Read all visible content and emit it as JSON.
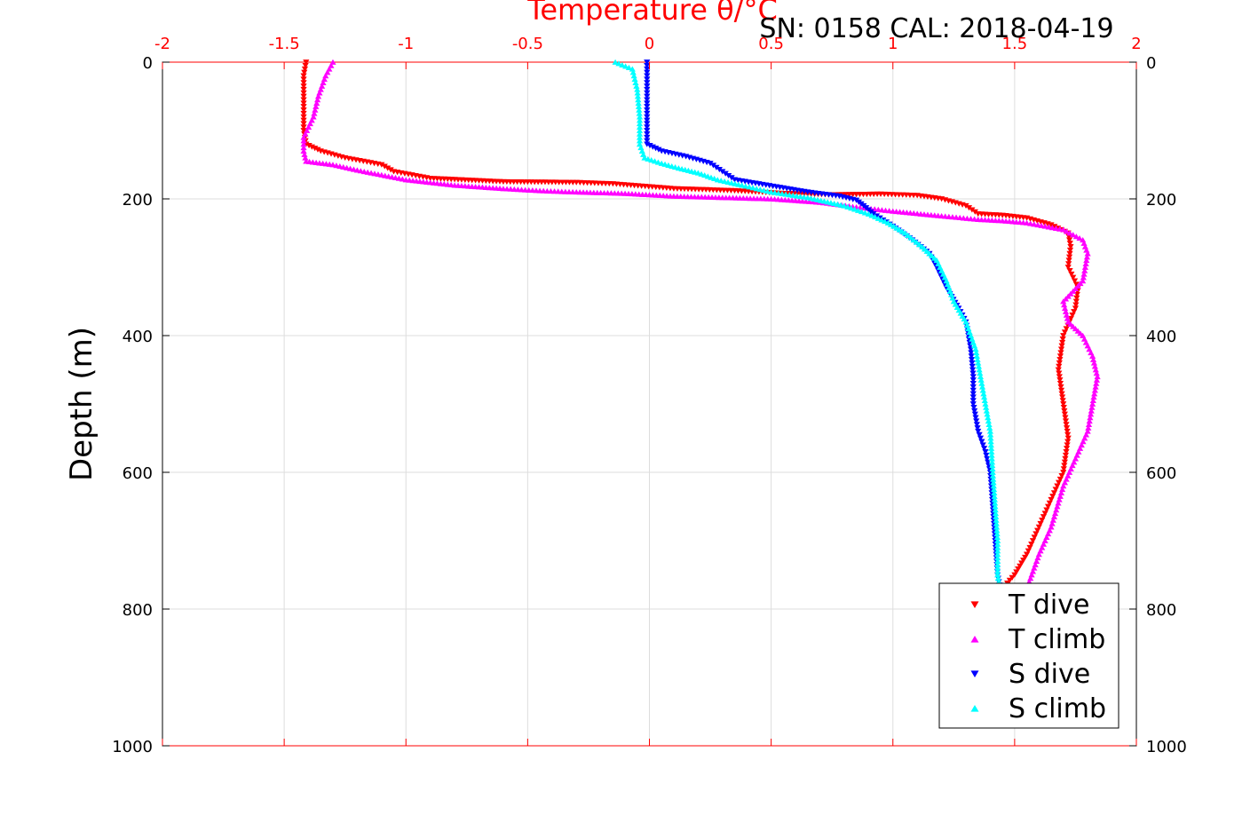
{
  "chart_data": {
    "type": "scatter",
    "title": "SN: 0158  CAL: 2018-04-19",
    "xlabel": "Temperature θ/°C",
    "ylabel": "Depth (m)",
    "xlim": [
      -2,
      2
    ],
    "ylim": [
      0,
      1000
    ],
    "y_reversed": true,
    "grid": true,
    "legend_position": "bottom-right",
    "x_ticks": [
      "-2",
      "-1.5",
      "-1",
      "-0.5",
      "0",
      "0.5",
      "1",
      "1.5",
      "2"
    ],
    "y_ticks": [
      "0",
      "200",
      "400",
      "600",
      "800",
      "1000"
    ],
    "colors": {
      "x_axis": "#ff0000",
      "y_axis": "#000000",
      "grid": "#dddddd"
    },
    "series": [
      {
        "name": "T dive",
        "marker": "triangle-down",
        "color": "#ff0000",
        "points": [
          [
            -1.41,
            0
          ],
          [
            -1.42,
            20
          ],
          [
            -1.42,
            50
          ],
          [
            -1.42,
            80
          ],
          [
            -1.42,
            100
          ],
          [
            -1.41,
            120
          ],
          [
            -1.35,
            130
          ],
          [
            -1.25,
            140
          ],
          [
            -1.1,
            150
          ],
          [
            -1.05,
            160
          ],
          [
            -0.9,
            170
          ],
          [
            -0.6,
            175
          ],
          [
            -0.3,
            176
          ],
          [
            -0.15,
            178
          ],
          [
            0.1,
            185
          ],
          [
            0.35,
            188
          ],
          [
            0.55,
            192
          ],
          [
            0.75,
            194
          ],
          [
            0.95,
            193
          ],
          [
            1.1,
            195
          ],
          [
            1.2,
            200
          ],
          [
            1.3,
            210
          ],
          [
            1.35,
            222
          ],
          [
            1.45,
            224
          ],
          [
            1.55,
            228
          ],
          [
            1.65,
            238
          ],
          [
            1.72,
            250
          ],
          [
            1.73,
            270
          ],
          [
            1.72,
            300
          ],
          [
            1.76,
            330
          ],
          [
            1.75,
            360
          ],
          [
            1.7,
            400
          ],
          [
            1.68,
            450
          ],
          [
            1.7,
            500
          ],
          [
            1.72,
            550
          ],
          [
            1.7,
            600
          ],
          [
            1.65,
            640
          ],
          [
            1.6,
            680
          ],
          [
            1.55,
            720
          ],
          [
            1.5,
            750
          ],
          [
            1.45,
            770
          ]
        ]
      },
      {
        "name": "T climb",
        "marker": "triangle-up",
        "color": "#ff00ff",
        "points": [
          [
            -1.3,
            0
          ],
          [
            -1.33,
            20
          ],
          [
            -1.36,
            50
          ],
          [
            -1.38,
            80
          ],
          [
            -1.42,
            110
          ],
          [
            -1.42,
            130
          ],
          [
            -1.41,
            145
          ],
          [
            -1.3,
            150
          ],
          [
            -1.2,
            158
          ],
          [
            -1.1,
            165
          ],
          [
            -1.0,
            172
          ],
          [
            -0.8,
            180
          ],
          [
            -0.6,
            185
          ],
          [
            -0.45,
            188
          ],
          [
            -0.3,
            190
          ],
          [
            -0.1,
            192
          ],
          [
            0.1,
            196
          ],
          [
            0.3,
            198
          ],
          [
            0.5,
            200
          ],
          [
            0.7,
            205
          ],
          [
            0.85,
            212
          ],
          [
            1.0,
            218
          ],
          [
            1.2,
            225
          ],
          [
            1.35,
            230
          ],
          [
            1.45,
            232
          ],
          [
            1.55,
            235
          ],
          [
            1.7,
            245
          ],
          [
            1.78,
            260
          ],
          [
            1.8,
            280
          ],
          [
            1.78,
            320
          ],
          [
            1.7,
            350
          ],
          [
            1.72,
            380
          ],
          [
            1.78,
            400
          ],
          [
            1.82,
            430
          ],
          [
            1.84,
            460
          ],
          [
            1.82,
            500
          ],
          [
            1.8,
            540
          ],
          [
            1.75,
            580
          ],
          [
            1.7,
            620
          ],
          [
            1.65,
            680
          ],
          [
            1.6,
            720
          ],
          [
            1.56,
            760
          ]
        ]
      },
      {
        "name": "S dive",
        "marker": "triangle-down",
        "color": "#0000ff",
        "points": [
          [
            -0.01,
            0
          ],
          [
            -0.01,
            20
          ],
          [
            -0.01,
            60
          ],
          [
            -0.01,
            100
          ],
          [
            -0.01,
            120
          ],
          [
            0.05,
            130
          ],
          [
            0.15,
            138
          ],
          [
            0.25,
            148
          ],
          [
            0.3,
            160
          ],
          [
            0.35,
            172
          ],
          [
            0.45,
            178
          ],
          [
            0.55,
            184
          ],
          [
            0.65,
            190
          ],
          [
            0.78,
            196
          ],
          [
            0.85,
            202
          ],
          [
            0.88,
            210
          ],
          [
            0.92,
            222
          ],
          [
            1.0,
            240
          ],
          [
            1.08,
            260
          ],
          [
            1.15,
            280
          ],
          [
            1.18,
            300
          ],
          [
            1.22,
            330
          ],
          [
            1.27,
            360
          ],
          [
            1.3,
            380
          ],
          [
            1.32,
            420
          ],
          [
            1.33,
            460
          ],
          [
            1.33,
            500
          ],
          [
            1.35,
            540
          ],
          [
            1.38,
            570
          ],
          [
            1.4,
            600
          ],
          [
            1.41,
            650
          ],
          [
            1.42,
            700
          ],
          [
            1.43,
            750
          ],
          [
            1.44,
            770
          ]
        ]
      },
      {
        "name": "S climb",
        "marker": "triangle-up",
        "color": "#00ffff",
        "points": [
          [
            -0.14,
            0
          ],
          [
            -0.07,
            10
          ],
          [
            -0.05,
            40
          ],
          [
            -0.04,
            80
          ],
          [
            -0.04,
            120
          ],
          [
            -0.02,
            140
          ],
          [
            0.05,
            148
          ],
          [
            0.12,
            155
          ],
          [
            0.2,
            162
          ],
          [
            0.28,
            172
          ],
          [
            0.38,
            180
          ],
          [
            0.5,
            190
          ],
          [
            0.65,
            198
          ],
          [
            0.8,
            210
          ],
          [
            0.9,
            222
          ],
          [
            0.98,
            235
          ],
          [
            1.05,
            250
          ],
          [
            1.12,
            270
          ],
          [
            1.18,
            290
          ],
          [
            1.22,
            320
          ],
          [
            1.25,
            350
          ],
          [
            1.3,
            380
          ],
          [
            1.34,
            420
          ],
          [
            1.36,
            460
          ],
          [
            1.38,
            500
          ],
          [
            1.4,
            540
          ],
          [
            1.41,
            600
          ],
          [
            1.42,
            650
          ],
          [
            1.43,
            700
          ],
          [
            1.43,
            750
          ],
          [
            1.44,
            770
          ]
        ]
      }
    ]
  }
}
